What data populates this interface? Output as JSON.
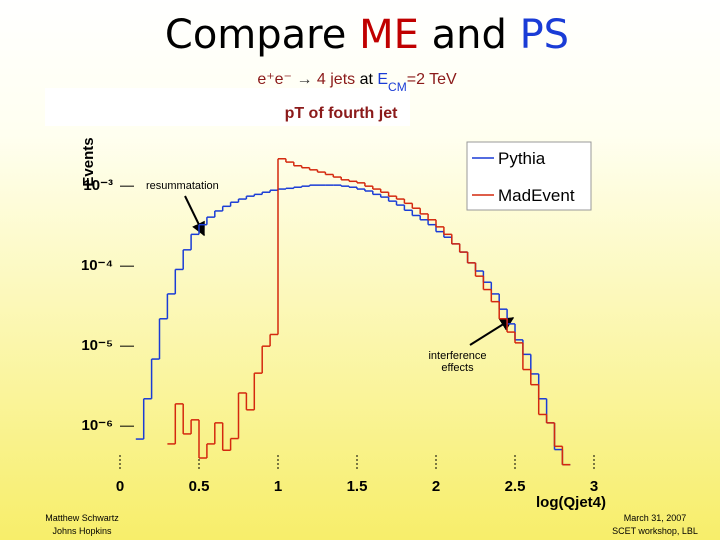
{
  "slide": {
    "title": [
      "Compare ",
      "ME",
      " and ",
      "PS"
    ],
    "subtitle": [
      "e⁺e⁻",
      " → ",
      "4 jets",
      " at ",
      "E",
      "CM",
      "=2 TeV"
    ],
    "footer_left": [
      "Matthew Schwartz",
      "Johns Hopkins"
    ],
    "footer_right": [
      "March 31, 2007",
      "SCET workshop, LBL"
    ]
  },
  "chart_data": {
    "type": "histogram",
    "title": "pT of fourth jet",
    "xlabel": "log(Qjet4)",
    "ylabel": "Events",
    "log_y": true,
    "legend": "upper right",
    "annotations": [
      "resummatation",
      "interference effects"
    ],
    "xlim": [
      0,
      3
    ],
    "ylim": [
      3e-07,
      0.004
    ],
    "xticks": [
      0,
      0.5,
      1,
      1.5,
      2,
      2.5,
      3
    ],
    "yticks": [
      {
        "value": 1e-06,
        "label": "10⁻⁶"
      },
      {
        "value": 1e-05,
        "label": "10⁻⁵"
      },
      {
        "value": 0.0001,
        "label": "10⁻⁴"
      },
      {
        "value": 0.001,
        "label": "10⁻³"
      }
    ],
    "bins": [
      0.1,
      0.15,
      0.2,
      0.25,
      0.3,
      0.35,
      0.4,
      0.45,
      0.5,
      0.55,
      0.6,
      0.65,
      0.7,
      0.75,
      0.8,
      0.85,
      0.9,
      0.95,
      1,
      1.05,
      1.1,
      1.15,
      1.2,
      1.25,
      1.3,
      1.35,
      1.4,
      1.45,
      1.5,
      1.55,
      1.6,
      1.65,
      1.7,
      1.75,
      1.8,
      1.85,
      1.9,
      1.95,
      2,
      2.05,
      2.1,
      2.15,
      2.2,
      2.25,
      2.3,
      2.35,
      2.4,
      2.45,
      2.5,
      2.55,
      2.6,
      2.65,
      2.7,
      2.75,
      2.8,
      2.85
    ],
    "series": [
      {
        "name": "Pythia",
        "color": "#1a3cd6",
        "values": [
          6.9e-07,
          2.2e-06,
          6.9e-06,
          2.2e-05,
          4.5e-05,
          9.1e-05,
          0.00016,
          0.00025,
          0.00033,
          0.00041,
          0.00049,
          0.00056,
          0.00063,
          0.00069,
          0.00075,
          0.00079,
          0.00084,
          0.00089,
          0.00092,
          0.00094,
          0.00097,
          0.001,
          0.00103,
          0.00103,
          0.00103,
          0.00103,
          0.001,
          0.00097,
          0.00092,
          0.00087,
          0.00079,
          0.00073,
          0.00065,
          0.00058,
          0.0005,
          0.00043,
          0.00038,
          0.00033,
          0.00027,
          0.00023,
          0.00019,
          0.00015,
          0.00011,
          8.7e-05,
          6.3e-05,
          4.5e-05,
          2.9e-05,
          1.9e-05,
          1.2e-05,
          7.9e-06,
          4.5e-06,
          2.2e-06,
          1.1e-06,
          5.1e-07,
          3.3e-07
        ]
      },
      {
        "name": "MadEvent",
        "color": "#d4280e",
        "values": [
          null,
          null,
          null,
          null,
          6e-07,
          1.9e-06,
          8e-07,
          1.2e-06,
          4e-07,
          6e-07,
          1.1e-06,
          5e-07,
          7e-07,
          2.6e-06,
          1.6e-06,
          4.6e-06,
          1e-05,
          1.4e-05,
          0.0022,
          0.002,
          0.0018,
          0.0017,
          0.0016,
          0.0015,
          0.0014,
          0.0013,
          0.0012,
          0.00115,
          0.0011,
          0.001,
          0.00092,
          0.00084,
          0.00075,
          0.00069,
          0.00061,
          0.00053,
          0.00045,
          0.00038,
          0.00031,
          0.00025,
          0.00019,
          0.00015,
          0.00011,
          7.5e-05,
          5.1e-05,
          3.6e-05,
          2.2e-05,
          1.5e-05,
          1.1e-05,
          5.1e-06,
          3.3e-06,
          1.4e-06,
          1.1e-06,
          5.6e-07,
          3.3e-07
        ]
      }
    ]
  }
}
